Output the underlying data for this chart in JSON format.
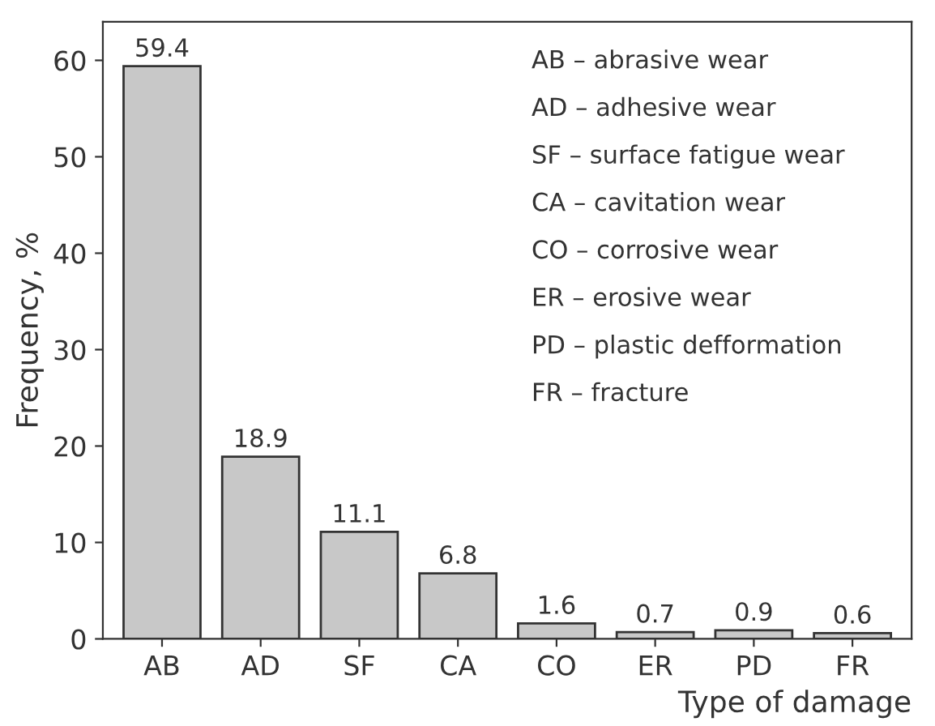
{
  "chart_data": {
    "type": "bar",
    "xlabel": "Type of damage",
    "ylabel": "Frequency, %",
    "categories": [
      "AB",
      "AD",
      "SF",
      "CA",
      "CO",
      "ER",
      "PD",
      "FR"
    ],
    "values": [
      59.4,
      18.9,
      11.1,
      6.8,
      1.6,
      0.7,
      0.9,
      0.6
    ],
    "color": "#c8c8c8",
    "data_labels": true,
    "ylim": [
      0,
      64
    ],
    "yticks": [
      0,
      10,
      20,
      30,
      40,
      50,
      60
    ],
    "annotations": [
      "AB – abrasive wear",
      "AD – adhesive wear",
      "SF – surface fatigue wear",
      "CA – cavitation wear",
      "CO – corrosive wear",
      "ER – erosive wear",
      "PD – plastic defformation",
      "FR – fracture"
    ]
  }
}
